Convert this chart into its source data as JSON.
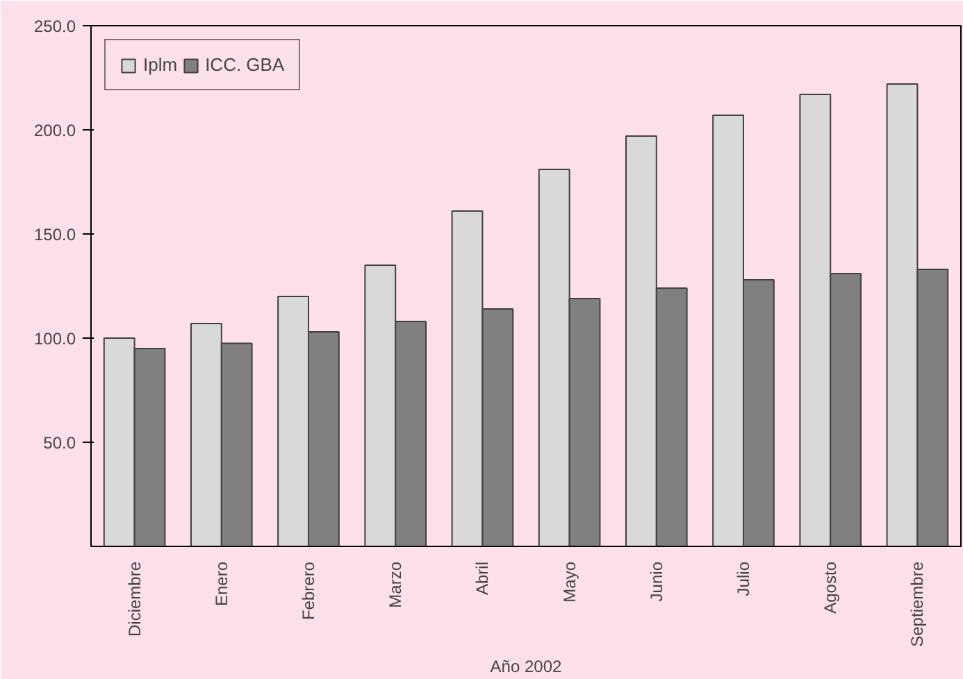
{
  "chart_data": {
    "type": "bar",
    "categories": [
      "Diciembre",
      "Enero",
      "Febrero",
      "Marzo",
      "Abril",
      "Mayo",
      "Junio",
      "Julio",
      "Agosto",
      "Septiembre"
    ],
    "series": [
      {
        "name": "Iplm",
        "color": "#d9d9d9",
        "values": [
          100,
          107,
          120,
          135,
          161,
          181,
          197,
          207,
          217,
          222
        ]
      },
      {
        "name": "ICC. GBA",
        "color": "#808080",
        "values": [
          95,
          97.5,
          103,
          108,
          114,
          119,
          124,
          128,
          131,
          133
        ]
      }
    ],
    "ylim": [
      0,
      250
    ],
    "yticks": [
      {
        "value": 50,
        "label": "50.0"
      },
      {
        "value": 100,
        "label": "100.0"
      },
      {
        "value": 150,
        "label": "150.0"
      },
      {
        "value": 200,
        "label": "200.0"
      },
      {
        "value": 250,
        "label": "250.0"
      }
    ],
    "annotations": [
      "Año 2002"
    ],
    "grid": false,
    "legend": "top left"
  }
}
